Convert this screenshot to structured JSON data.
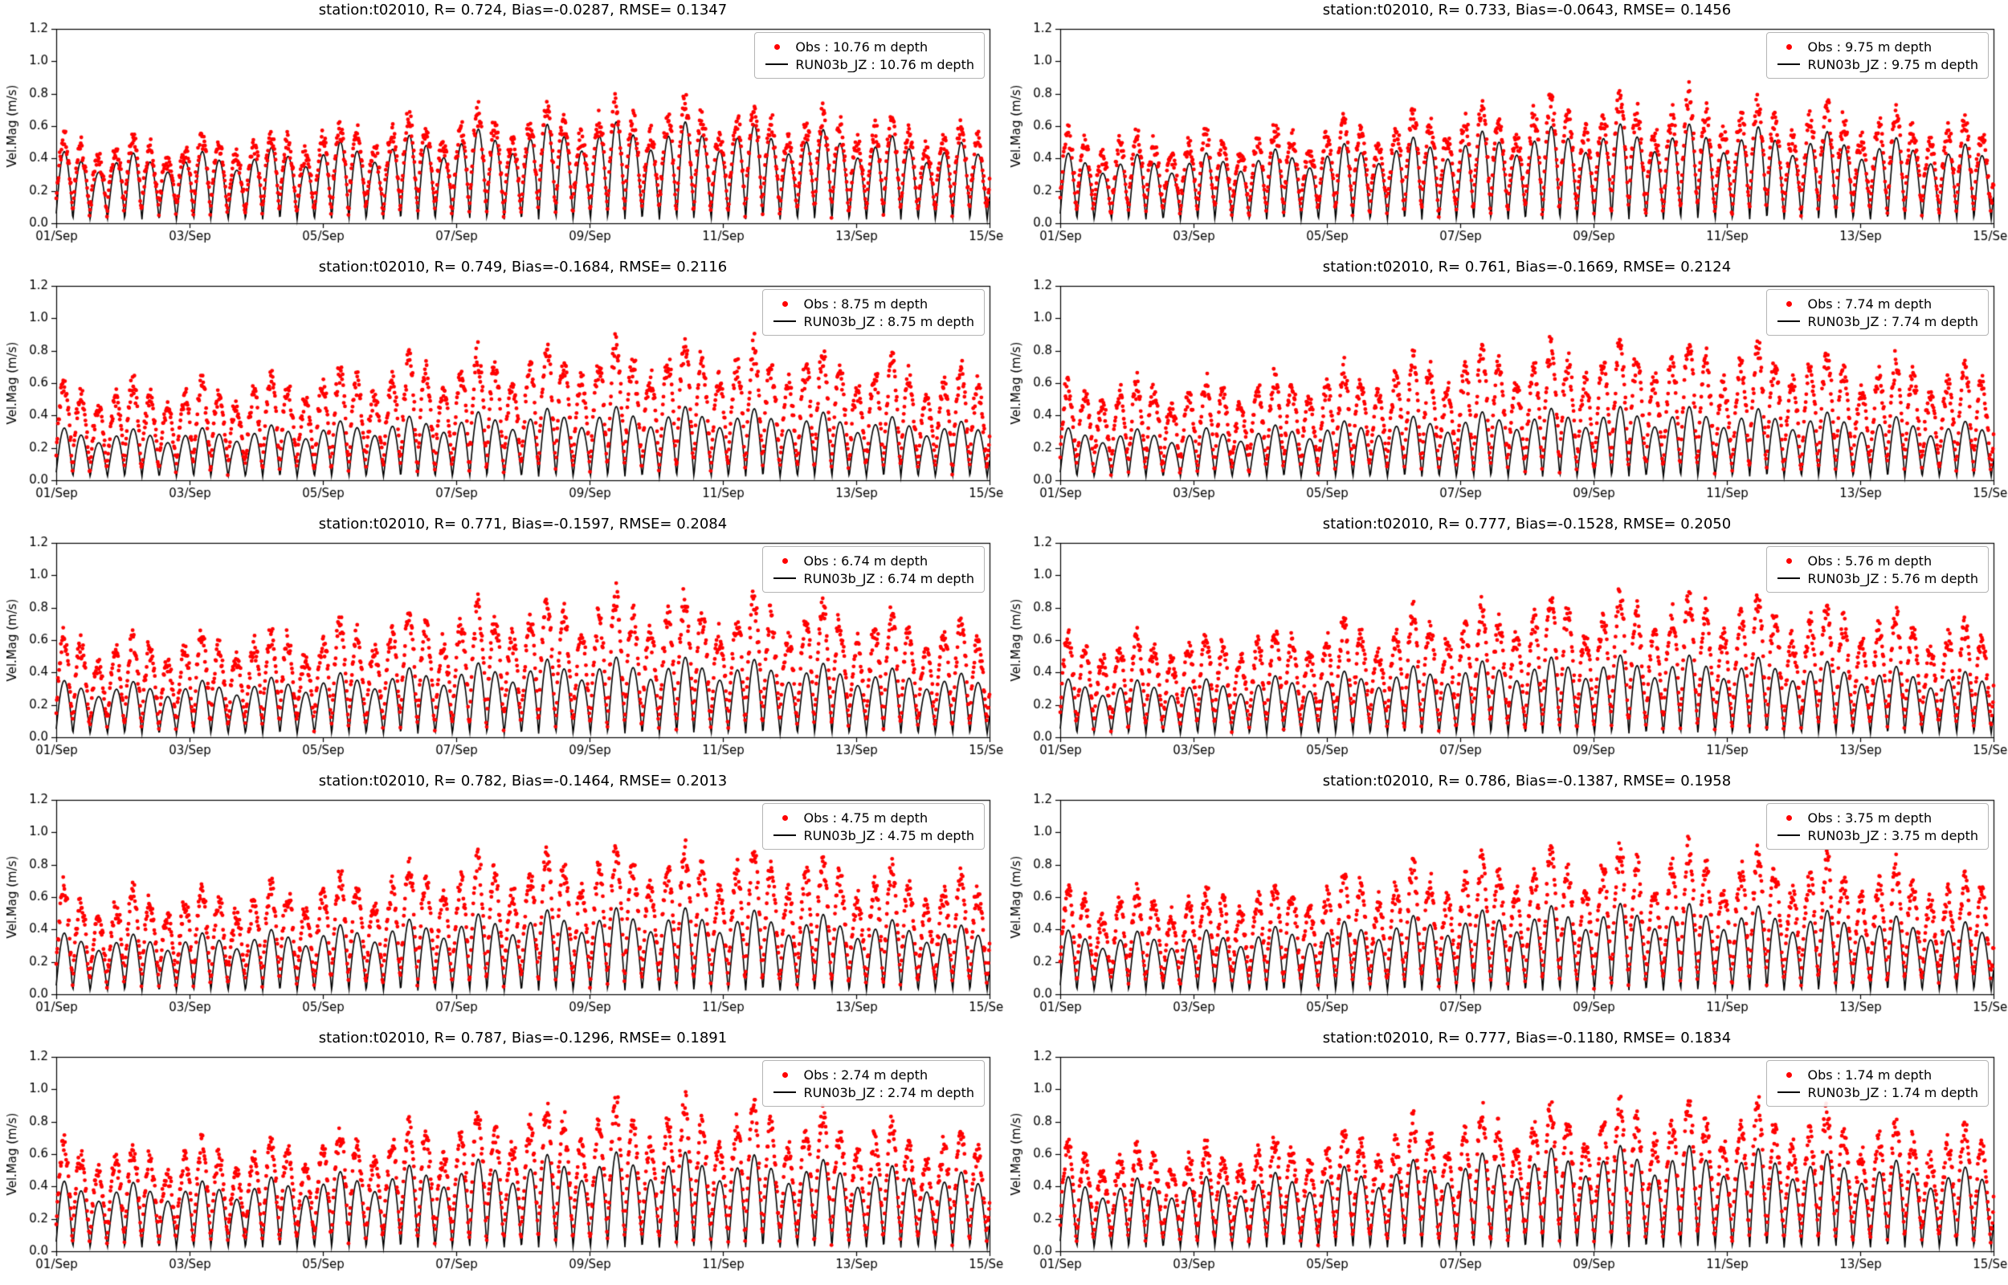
{
  "figure": {
    "background": "#ffffff",
    "ylabel": "Vel.Mag (m/s)",
    "ylim": [
      0.0,
      1.2
    ],
    "yticks": [
      0.0,
      0.2,
      0.4,
      0.6,
      0.8,
      1.0,
      1.2
    ],
    "x_days": 14,
    "xtick_labels": [
      "01/Sep",
      "03/Sep",
      "05/Sep",
      "07/Sep",
      "09/Sep",
      "11/Sep",
      "13/Sep",
      "15/Sep"
    ],
    "xtick_day_step": 2,
    "grid": false,
    "legend_position": "upper right",
    "colors": {
      "obs": "#ff0000",
      "model": "#000000"
    },
    "tidal_period_days": 0.5175,
    "springneap_period_days": 15.5,
    "diurnal_period_days": 1.0351
  },
  "chart_data": [
    {
      "type": "scatter",
      "title": "station:t02010, R= 0.724, Bias=-0.0287, RMSE= 0.1347",
      "station": "t02010",
      "R": 0.724,
      "Bias": -0.0287,
      "RMSE": 0.1347,
      "depth_m": 10.76,
      "xlabel": "",
      "ylabel": "Vel.Mag (m/s)",
      "xrange": [
        "01/Sep",
        "15/Sep"
      ],
      "ylim": [
        0.0,
        1.2
      ],
      "legend": [
        "Obs : 10.76 m depth",
        "RUN03b_JZ : 10.76 m depth"
      ],
      "series": [
        {
          "name": "Obs",
          "type": "scatter",
          "color": "#ff0000",
          "marker": "dot",
          "peak_range": [
            0.4,
            0.75
          ]
        },
        {
          "name": "RUN03b_JZ",
          "type": "line",
          "color": "#000000",
          "peak_range": [
            0.35,
            0.65
          ]
        }
      ],
      "gen": {
        "obs_amp": 0.5,
        "model_amp": 0.46,
        "seed": 1
      }
    },
    {
      "type": "scatter",
      "title": "station:t02010, R= 0.733, Bias=-0.0643, RMSE= 0.1456",
      "station": "t02010",
      "R": 0.733,
      "Bias": -0.0643,
      "RMSE": 0.1456,
      "depth_m": 9.75,
      "xlabel": "",
      "ylabel": "Vel.Mag (m/s)",
      "xrange": [
        "01/Sep",
        "15/Sep"
      ],
      "ylim": [
        0.0,
        1.2
      ],
      "legend": [
        "Obs : 9.75 m depth",
        "RUN03b_JZ : 9.75 m depth"
      ],
      "series": [
        {
          "name": "Obs",
          "type": "scatter",
          "color": "#ff0000",
          "marker": "dot",
          "peak_range": [
            0.45,
            0.8
          ]
        },
        {
          "name": "RUN03b_JZ",
          "type": "line",
          "color": "#000000",
          "peak_range": [
            0.35,
            0.62
          ]
        }
      ],
      "gen": {
        "obs_amp": 0.53,
        "model_amp": 0.45,
        "seed": 2
      }
    },
    {
      "type": "scatter",
      "title": "station:t02010, R= 0.749, Bias=-0.1684, RMSE= 0.2116",
      "station": "t02010",
      "R": 0.749,
      "Bias": -0.1684,
      "RMSE": 0.2116,
      "depth_m": 8.75,
      "xlabel": "",
      "ylabel": "Vel.Mag (m/s)",
      "xrange": [
        "01/Sep",
        "15/Sep"
      ],
      "ylim": [
        0.0,
        1.2
      ],
      "legend": [
        "Obs : 8.75 m depth",
        "RUN03b_JZ : 8.75 m depth"
      ],
      "series": [
        {
          "name": "Obs",
          "type": "scatter",
          "color": "#ff0000",
          "marker": "dot",
          "peak_range": [
            0.5,
            0.9
          ]
        },
        {
          "name": "RUN03b_JZ",
          "type": "line",
          "color": "#000000",
          "peak_range": [
            0.3,
            0.48
          ]
        }
      ],
      "gen": {
        "obs_amp": 0.58,
        "model_amp": 0.33,
        "seed": 3
      }
    },
    {
      "type": "scatter",
      "title": "station:t02010, R= 0.761, Bias=-0.1669, RMSE= 0.2124",
      "station": "t02010",
      "R": 0.761,
      "Bias": -0.1669,
      "RMSE": 0.2124,
      "depth_m": 7.74,
      "xlabel": "",
      "ylabel": "Vel.Mag (m/s)",
      "xrange": [
        "01/Sep",
        "15/Sep"
      ],
      "ylim": [
        0.0,
        1.2
      ],
      "legend": [
        "Obs : 7.74 m depth",
        "RUN03b_JZ : 7.74 m depth"
      ],
      "series": [
        {
          "name": "Obs",
          "type": "scatter",
          "color": "#ff0000",
          "marker": "dot",
          "peak_range": [
            0.5,
            0.9
          ]
        },
        {
          "name": "RUN03b_JZ",
          "type": "line",
          "color": "#000000",
          "peak_range": [
            0.3,
            0.48
          ]
        }
      ],
      "gen": {
        "obs_amp": 0.58,
        "model_amp": 0.33,
        "seed": 4
      }
    },
    {
      "type": "scatter",
      "title": "station:t02010, R= 0.771, Bias=-0.1597, RMSE= 0.2084",
      "station": "t02010",
      "R": 0.771,
      "Bias": -0.1597,
      "RMSE": 0.2084,
      "depth_m": 6.74,
      "xlabel": "",
      "ylabel": "Vel.Mag (m/s)",
      "xrange": [
        "01/Sep",
        "15/Sep"
      ],
      "ylim": [
        0.0,
        1.2
      ],
      "legend": [
        "Obs : 6.74 m depth",
        "RUN03b_JZ : 6.74 m depth"
      ],
      "series": [
        {
          "name": "Obs",
          "type": "scatter",
          "color": "#ff0000",
          "marker": "dot",
          "peak_range": [
            0.5,
            0.9
          ]
        },
        {
          "name": "RUN03b_JZ",
          "type": "line",
          "color": "#000000",
          "peak_range": [
            0.32,
            0.52
          ]
        }
      ],
      "gen": {
        "obs_amp": 0.6,
        "model_amp": 0.36,
        "seed": 5
      }
    },
    {
      "type": "scatter",
      "title": "station:t02010, R= 0.777, Bias=-0.1528, RMSE= 0.2050",
      "station": "t02010",
      "R": 0.777,
      "Bias": -0.1528,
      "RMSE": 0.205,
      "depth_m": 5.76,
      "xlabel": "",
      "ylabel": "Vel.Mag (m/s)",
      "xrange": [
        "01/Sep",
        "15/Sep"
      ],
      "ylim": [
        0.0,
        1.2
      ],
      "legend": [
        "Obs : 5.76 m depth",
        "RUN03b_JZ : 5.76 m depth"
      ],
      "series": [
        {
          "name": "Obs",
          "type": "scatter",
          "color": "#ff0000",
          "marker": "dot",
          "peak_range": [
            0.5,
            0.9
          ]
        },
        {
          "name": "RUN03b_JZ",
          "type": "line",
          "color": "#000000",
          "peak_range": [
            0.33,
            0.53
          ]
        }
      ],
      "gen": {
        "obs_amp": 0.6,
        "model_amp": 0.37,
        "seed": 6
      }
    },
    {
      "type": "scatter",
      "title": "station:t02010, R= 0.782, Bias=-0.1464, RMSE= 0.2013",
      "station": "t02010",
      "R": 0.782,
      "Bias": -0.1464,
      "RMSE": 0.2013,
      "depth_m": 4.75,
      "xlabel": "",
      "ylabel": "Vel.Mag (m/s)",
      "xrange": [
        "01/Sep",
        "15/Sep"
      ],
      "ylim": [
        0.0,
        1.2
      ],
      "legend": [
        "Obs : 4.75 m depth",
        "RUN03b_JZ : 4.75 m depth"
      ],
      "series": [
        {
          "name": "Obs",
          "type": "scatter",
          "color": "#ff0000",
          "marker": "dot",
          "peak_range": [
            0.55,
            0.92
          ]
        },
        {
          "name": "RUN03b_JZ",
          "type": "line",
          "color": "#000000",
          "peak_range": [
            0.35,
            0.55
          ]
        }
      ],
      "gen": {
        "obs_amp": 0.62,
        "model_amp": 0.39,
        "seed": 7
      }
    },
    {
      "type": "scatter",
      "title": "station:t02010, R= 0.786, Bias=-0.1387, RMSE= 0.1958",
      "station": "t02010",
      "R": 0.786,
      "Bias": -0.1387,
      "RMSE": 0.1958,
      "depth_m": 3.75,
      "xlabel": "",
      "ylabel": "Vel.Mag (m/s)",
      "xrange": [
        "01/Sep",
        "15/Sep"
      ],
      "ylim": [
        0.0,
        1.2
      ],
      "legend": [
        "Obs : 3.75 m depth",
        "RUN03b_JZ : 3.75 m depth"
      ],
      "series": [
        {
          "name": "Obs",
          "type": "scatter",
          "color": "#ff0000",
          "marker": "dot",
          "peak_range": [
            0.55,
            0.92
          ]
        },
        {
          "name": "RUN03b_JZ",
          "type": "line",
          "color": "#000000",
          "peak_range": [
            0.36,
            0.58
          ]
        }
      ],
      "gen": {
        "obs_amp": 0.62,
        "model_amp": 0.41,
        "seed": 8
      }
    },
    {
      "type": "scatter",
      "title": "station:t02010, R= 0.787, Bias=-0.1296, RMSE= 0.1891",
      "station": "t02010",
      "R": 0.787,
      "Bias": -0.1296,
      "RMSE": 0.1891,
      "depth_m": 2.74,
      "xlabel": "",
      "ylabel": "Vel.Mag (m/s)",
      "xrange": [
        "01/Sep",
        "15/Sep"
      ],
      "ylim": [
        0.0,
        1.2
      ],
      "legend": [
        "Obs : 2.74 m depth",
        "RUN03b_JZ : 2.74 m depth"
      ],
      "series": [
        {
          "name": "Obs",
          "type": "scatter",
          "color": "#ff0000",
          "marker": "dot",
          "peak_range": [
            0.55,
            0.92
          ]
        },
        {
          "name": "RUN03b_JZ",
          "type": "line",
          "color": "#000000",
          "peak_range": [
            0.4,
            0.62
          ]
        }
      ],
      "gen": {
        "obs_amp": 0.63,
        "model_amp": 0.45,
        "seed": 9
      }
    },
    {
      "type": "scatter",
      "title": "station:t02010, R= 0.777, Bias=-0.1180, RMSE= 0.1834",
      "station": "t02010",
      "R": 0.777,
      "Bias": -0.118,
      "RMSE": 0.1834,
      "depth_m": 1.74,
      "xlabel": "",
      "ylabel": "Vel.Mag (m/s)",
      "xrange": [
        "01/Sep",
        "15/Sep"
      ],
      "ylim": [
        0.0,
        1.2
      ],
      "legend": [
        "Obs : 1.74 m depth",
        "RUN03b_JZ : 1.74 m depth"
      ],
      "series": [
        {
          "name": "Obs",
          "type": "scatter",
          "color": "#ff0000",
          "marker": "dot",
          "peak_range": [
            0.55,
            0.92
          ]
        },
        {
          "name": "RUN03b_JZ",
          "type": "line",
          "color": "#000000",
          "peak_range": [
            0.42,
            0.68
          ]
        }
      ],
      "gen": {
        "obs_amp": 0.63,
        "model_amp": 0.48,
        "seed": 10
      }
    }
  ]
}
